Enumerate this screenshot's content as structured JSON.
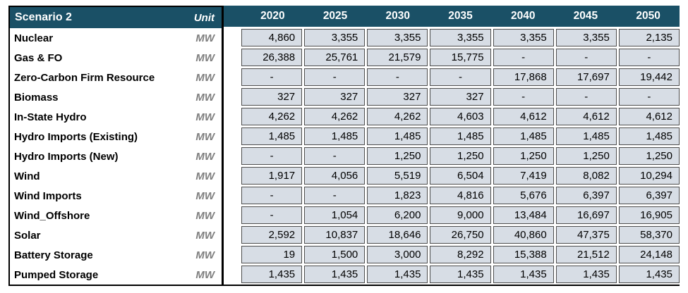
{
  "colors": {
    "header_bg": "#1a5066",
    "header_text": "#ffffff",
    "cell_bg": "#d7dde5",
    "cell_border": "#4d4d4d",
    "unit_text": "#7f7f7f",
    "outer_border": "#000000"
  },
  "chart_data": {
    "type": "table",
    "title": "Scenario 2",
    "unit_header": "Unit",
    "columns": [
      "2020",
      "2025",
      "2030",
      "2035",
      "2040",
      "2045",
      "2050"
    ],
    "rows": [
      {
        "label": "Nuclear",
        "unit": "MW",
        "values": [
          "4,860",
          "3,355",
          "3,355",
          "3,355",
          "3,355",
          "3,355",
          "2,135"
        ]
      },
      {
        "label": "Gas & FO",
        "unit": "MW",
        "values": [
          "26,388",
          "25,761",
          "21,579",
          "15,775",
          "-",
          "-",
          "-"
        ]
      },
      {
        "label": "Zero-Carbon Firm Resource",
        "unit": "MW",
        "values": [
          "-",
          "-",
          "-",
          "-",
          "17,868",
          "17,697",
          "19,442"
        ]
      },
      {
        "label": "Biomass",
        "unit": "MW",
        "values": [
          "327",
          "327",
          "327",
          "327",
          "-",
          "-",
          "-"
        ]
      },
      {
        "label": "In-State Hydro",
        "unit": "MW",
        "values": [
          "4,262",
          "4,262",
          "4,262",
          "4,603",
          "4,612",
          "4,612",
          "4,612"
        ]
      },
      {
        "label": "Hydro Imports (Existing)",
        "unit": "MW",
        "values": [
          "1,485",
          "1,485",
          "1,485",
          "1,485",
          "1,485",
          "1,485",
          "1,485"
        ]
      },
      {
        "label": "Hydro Imports (New)",
        "unit": "MW",
        "values": [
          "-",
          "-",
          "1,250",
          "1,250",
          "1,250",
          "1,250",
          "1,250"
        ]
      },
      {
        "label": "Wind",
        "unit": "MW",
        "values": [
          "1,917",
          "4,056",
          "5,519",
          "6,504",
          "7,419",
          "8,082",
          "10,294"
        ]
      },
      {
        "label": "Wind Imports",
        "unit": "MW",
        "values": [
          "-",
          "-",
          "1,823",
          "4,816",
          "5,676",
          "6,397",
          "6,397"
        ]
      },
      {
        "label": "Wind_Offshore",
        "unit": "MW",
        "values": [
          "-",
          "1,054",
          "6,200",
          "9,000",
          "13,484",
          "16,697",
          "16,905"
        ]
      },
      {
        "label": "Solar",
        "unit": "MW",
        "values": [
          "2,592",
          "10,837",
          "18,646",
          "26,750",
          "40,860",
          "47,375",
          "58,370"
        ]
      },
      {
        "label": "Battery Storage",
        "unit": "MW",
        "values": [
          "19",
          "1,500",
          "3,000",
          "8,292",
          "15,388",
          "21,512",
          "24,148"
        ]
      },
      {
        "label": "Pumped Storage",
        "unit": "MW",
        "values": [
          "1,435",
          "1,435",
          "1,435",
          "1,435",
          "1,435",
          "1,435",
          "1,435"
        ]
      }
    ]
  }
}
